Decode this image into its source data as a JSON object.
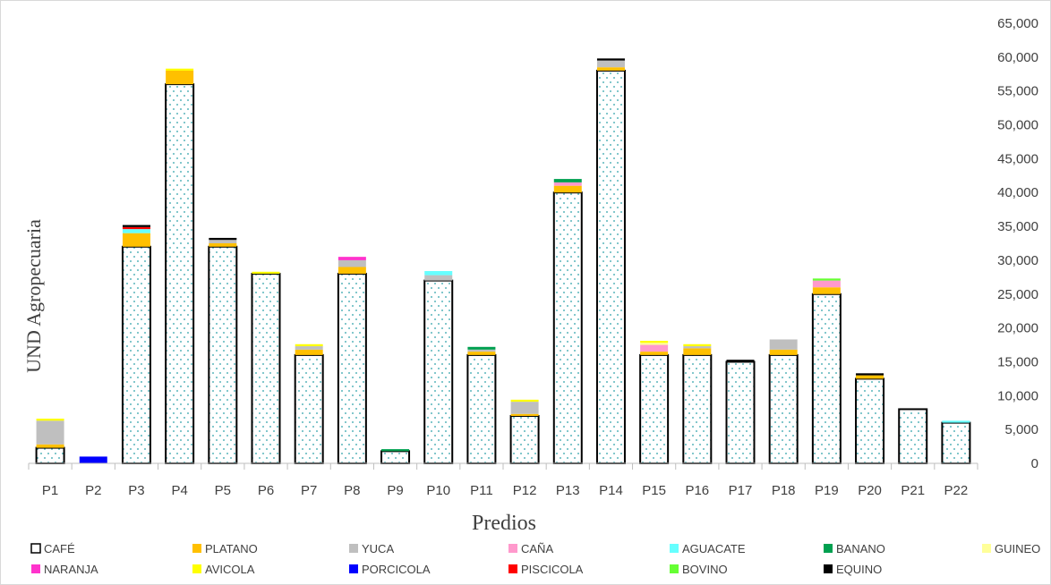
{
  "chart_data": {
    "type": "bar",
    "stacked": true,
    "title": "",
    "xlabel": "Predios",
    "ylabel": "UND Agropecuaria",
    "ylim": [
      0,
      65000
    ],
    "yticks": [
      0,
      5000,
      10000,
      15000,
      20000,
      25000,
      30000,
      35000,
      40000,
      45000,
      50000,
      55000,
      60000,
      65000
    ],
    "ytick_labels": [
      "0",
      "5,000",
      "10,000",
      "15,000",
      "20,000",
      "25,000",
      "30,000",
      "35,000",
      "40,000",
      "45,000",
      "50,000",
      "55,000",
      "60,000",
      "65,000"
    ],
    "y_axis_side": "right",
    "grid": false,
    "legend_position": "bottom",
    "categories": [
      "P1",
      "P2",
      "P3",
      "P4",
      "P5",
      "P6",
      "P7",
      "P8",
      "P9",
      "P10",
      "P11",
      "P12",
      "P13",
      "P14",
      "P15",
      "P16",
      "P17",
      "P18",
      "P19",
      "P20",
      "P21",
      "P22"
    ],
    "series": [
      {
        "name": "CAFÉ",
        "color": "#ffffff",
        "pattern": "dotted-teal",
        "values": [
          2300,
          0,
          32000,
          56000,
          32000,
          28000,
          16000,
          28000,
          1800,
          27000,
          16000,
          7000,
          40000,
          58000,
          16000,
          16000,
          15000,
          16000,
          25000,
          12500,
          8000,
          6000
        ]
      },
      {
        "name": "PLATANO",
        "color": "#ffc000",
        "values": [
          500,
          0,
          2000,
          2000,
          500,
          0,
          800,
          1000,
          0,
          0,
          500,
          300,
          1000,
          500,
          500,
          1000,
          0,
          800,
          1000,
          500,
          0,
          0
        ]
      },
      {
        "name": "YUCA",
        "color": "#bfbfbf",
        "values": [
          3500,
          0,
          0,
          0,
          500,
          0,
          500,
          1000,
          0,
          800,
          300,
          1800,
          0,
          1000,
          0,
          300,
          0,
          1500,
          0,
          0,
          0,
          0
        ]
      },
      {
        "name": "CAÑA",
        "color": "#ff99cc",
        "values": [
          0,
          0,
          0,
          0,
          0,
          0,
          0,
          0,
          0,
          0,
          0,
          0,
          500,
          0,
          1000,
          0,
          0,
          0,
          1000,
          0,
          0,
          0
        ]
      },
      {
        "name": "AGUACATE",
        "color": "#66ffff",
        "values": [
          0,
          0,
          600,
          0,
          0,
          0,
          0,
          0,
          0,
          600,
          0,
          0,
          0,
          0,
          0,
          0,
          0,
          0,
          0,
          0,
          0,
          300
        ]
      },
      {
        "name": "BANANO",
        "color": "#00a050",
        "values": [
          0,
          0,
          0,
          0,
          0,
          0,
          0,
          0,
          300,
          0,
          400,
          0,
          500,
          0,
          0,
          0,
          0,
          0,
          0,
          0,
          0,
          0
        ]
      },
      {
        "name": "GUINEO",
        "color": "#ffff99",
        "values": [
          0,
          0,
          0,
          0,
          0,
          0,
          0,
          0,
          0,
          0,
          0,
          0,
          0,
          0,
          300,
          0,
          0,
          0,
          0,
          0,
          0,
          0
        ]
      },
      {
        "name": "NARANJA",
        "color": "#ff33cc",
        "values": [
          0,
          0,
          0,
          0,
          0,
          0,
          0,
          500,
          0,
          0,
          0,
          0,
          0,
          0,
          0,
          0,
          0,
          0,
          0,
          0,
          0,
          0
        ]
      },
      {
        "name": "AVICOLA",
        "color": "#ffff00",
        "values": [
          300,
          0,
          0,
          300,
          0,
          300,
          300,
          0,
          0,
          0,
          0,
          300,
          0,
          0,
          300,
          300,
          0,
          0,
          0,
          0,
          0,
          0
        ]
      },
      {
        "name": "PORCICOLA",
        "color": "#0000ff",
        "values": [
          0,
          1000,
          0,
          0,
          0,
          0,
          0,
          0,
          0,
          0,
          0,
          0,
          0,
          0,
          0,
          0,
          0,
          0,
          0,
          0,
          0,
          0
        ]
      },
      {
        "name": "PISCICOLA",
        "color": "#ff0000",
        "values": [
          0,
          0,
          300,
          0,
          0,
          0,
          0,
          0,
          0,
          0,
          0,
          0,
          0,
          0,
          0,
          0,
          0,
          0,
          0,
          0,
          0,
          0
        ]
      },
      {
        "name": "BOVINO",
        "color": "#66ff33",
        "values": [
          0,
          0,
          0,
          0,
          0,
          0,
          0,
          0,
          0,
          0,
          0,
          0,
          0,
          0,
          0,
          0,
          0,
          0,
          300,
          0,
          0,
          0
        ]
      },
      {
        "name": "EQUINO",
        "color": "#000000",
        "values": [
          0,
          0,
          300,
          0,
          300,
          0,
          0,
          0,
          0,
          0,
          0,
          0,
          0,
          300,
          0,
          0,
          300,
          0,
          0,
          300,
          0,
          0
        ]
      }
    ]
  }
}
